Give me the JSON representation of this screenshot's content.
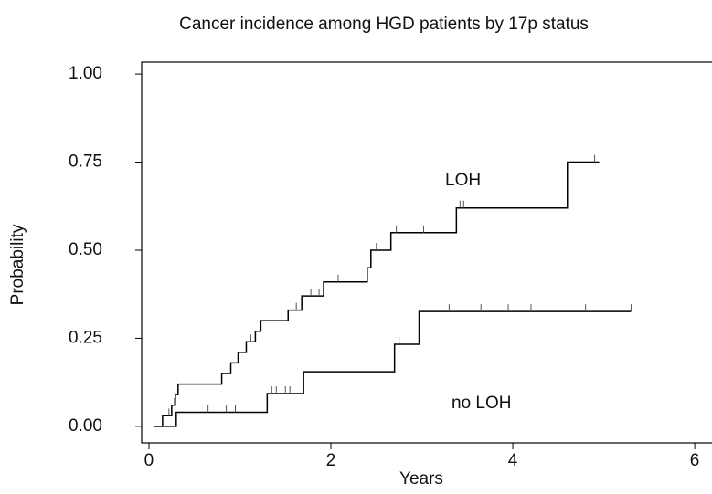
{
  "chart_data": {
    "type": "step",
    "title": "Cancer incidence among HGD patients by 17p status",
    "x_label": "Years",
    "y_label": "Probability",
    "xlim": [
      -0.08,
      6.19
    ],
    "ylim": [
      -0.047,
      1.034
    ],
    "xticks": [
      0,
      2,
      4,
      6
    ],
    "yticks": [
      {
        "value": 0,
        "label": "0.00"
      },
      {
        "value": 0.25,
        "label": "0.25"
      },
      {
        "value": 0.5,
        "label": "0.50"
      },
      {
        "value": 0.75,
        "label": "0.75"
      },
      {
        "value": 1,
        "label": "1.00"
      }
    ],
    "series": [
      {
        "name": "LOH",
        "color": "#000000",
        "x": [
          0.05,
          0.15,
          0.25,
          0.29,
          0.32,
          0.8,
          0.9,
          0.98,
          1.07,
          1.17,
          1.23,
          1.53,
          1.68,
          1.92,
          2.4,
          2.44,
          2.66,
          3.38,
          4.6,
          4.95
        ],
        "values": [
          0,
          0.03,
          0.06,
          0.09,
          0.12,
          0.15,
          0.18,
          0.21,
          0.24,
          0.27,
          0.3,
          0.33,
          0.37,
          0.41,
          0.45,
          0.5,
          0.55,
          0.62,
          0.75,
          0.75
        ],
        "censored": [
          0.22,
          0.28,
          1.12,
          1.62,
          1.78,
          1.87,
          2.08,
          2.5,
          2.72,
          3.02,
          3.42,
          3.46,
          4.9
        ]
      },
      {
        "name": "no LOH",
        "color": "#000000",
        "x": [
          0.05,
          0.3,
          1.3,
          1.7,
          2.7,
          2.97,
          5.3
        ],
        "values": [
          0,
          0.04,
          0.093,
          0.155,
          0.233,
          0.326,
          0.326
        ],
        "censored": [
          0.65,
          0.85,
          0.95,
          1.35,
          1.4,
          1.5,
          1.55,
          2.75,
          3.3,
          3.65,
          3.95,
          4.2,
          4.8,
          5.3
        ]
      }
    ]
  }
}
